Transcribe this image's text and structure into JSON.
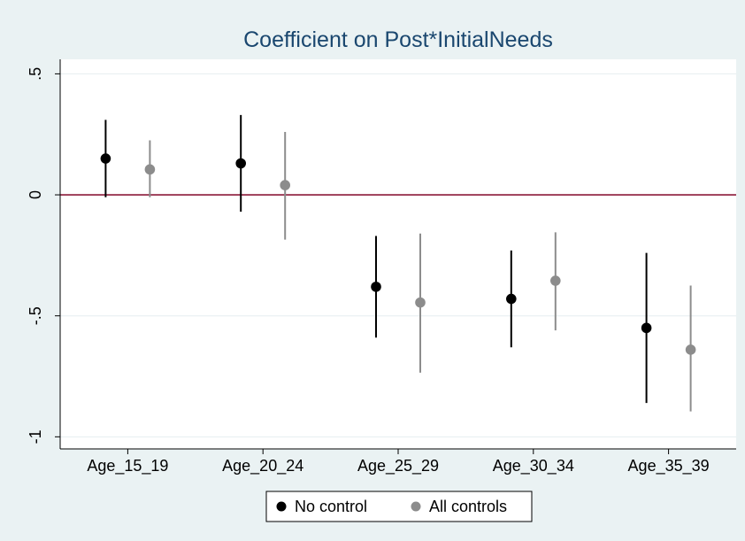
{
  "chart_data": {
    "type": "scatter",
    "title": "Coefficient on Post*InitialNeeds",
    "xlabel": "",
    "ylabel": "",
    "categories": [
      "Age_15_19",
      "Age_20_24",
      "Age_25_29",
      "Age_30_34",
      "Age_35_39"
    ],
    "ylim": [
      -1.05,
      0.56
    ],
    "yticks": [
      {
        "value": 0.5,
        "label": ".5"
      },
      {
        "value": 0,
        "label": "0"
      },
      {
        "value": -0.5,
        "label": "-.5"
      },
      {
        "value": -1,
        "label": "-1"
      }
    ],
    "reference_line": {
      "value": 0,
      "color": "#8b1a3a"
    },
    "grid": true,
    "legend_position": "bottom",
    "series": [
      {
        "name": "No control",
        "color": "#000000",
        "values": [
          0.15,
          0.13,
          -0.38,
          -0.43,
          -0.55
        ],
        "ci_low": [
          -0.01,
          -0.07,
          -0.59,
          -0.63,
          -0.86
        ],
        "ci_high": [
          0.31,
          0.33,
          -0.17,
          -0.23,
          -0.24
        ]
      },
      {
        "name": "All controls",
        "color": "#8c8c8c",
        "values": [
          0.105,
          0.04,
          -0.445,
          -0.355,
          -0.64
        ],
        "ci_low": [
          -0.01,
          -0.185,
          -0.735,
          -0.56,
          -0.895
        ],
        "ci_high": [
          0.225,
          0.26,
          -0.16,
          -0.155,
          -0.375
        ]
      }
    ]
  }
}
